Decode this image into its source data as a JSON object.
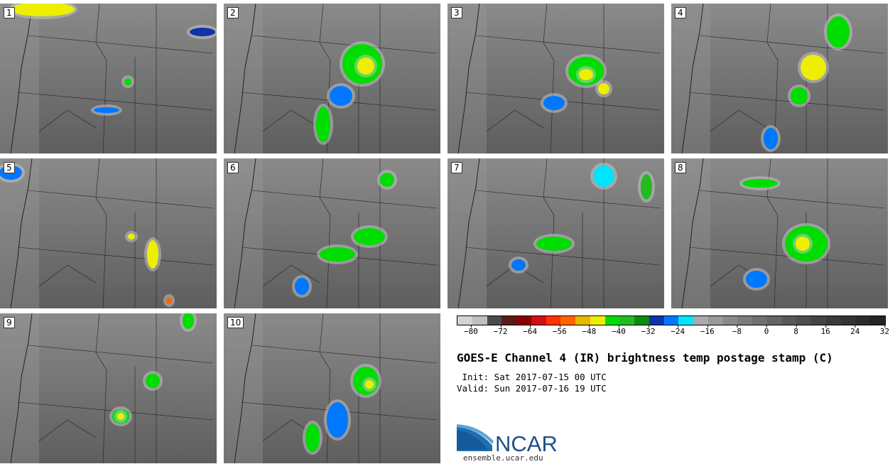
{
  "panels": [
    {
      "number": "1"
    },
    {
      "number": "2"
    },
    {
      "number": "3"
    },
    {
      "number": "4"
    },
    {
      "number": "5"
    },
    {
      "number": "6"
    },
    {
      "number": "7"
    },
    {
      "number": "8"
    },
    {
      "number": "9"
    },
    {
      "number": "10"
    }
  ],
  "colorbar": {
    "tick_labels": [
      "−80",
      "−72",
      "−64",
      "−56",
      "−48",
      "−40",
      "−32",
      "−24",
      "−16",
      "−8",
      "0",
      "8",
      "16",
      "24",
      "32"
    ],
    "colors": [
      "#d4d4d4",
      "#bfbfbf",
      "#4a4a4a",
      "#5a1a1a",
      "#8b0000",
      "#cc1111",
      "#ff3300",
      "#ff6600",
      "#e6b800",
      "#eeee00",
      "#00dd00",
      "#22bb22",
      "#118811",
      "#1133aa",
      "#0077ff",
      "#00e5ff",
      "#aaaaaa",
      "#999999",
      "#8a8a8a",
      "#7c7c7c",
      "#707070",
      "#646464",
      "#585858",
      "#4e4e4e",
      "#444444",
      "#3b3b3b",
      "#333333",
      "#2b2b2b",
      "#242424"
    ]
  },
  "title": "GOES-E Channel 4 (IR) brightness temp postage stamp (C)",
  "init_line": " Init: Sat 2017-07-15 00 UTC",
  "valid_line": "Valid: Sun 2017-07-16 19 UTC",
  "logo_text": "NCAR",
  "logo_url": "ensemble.ucar.edu"
}
